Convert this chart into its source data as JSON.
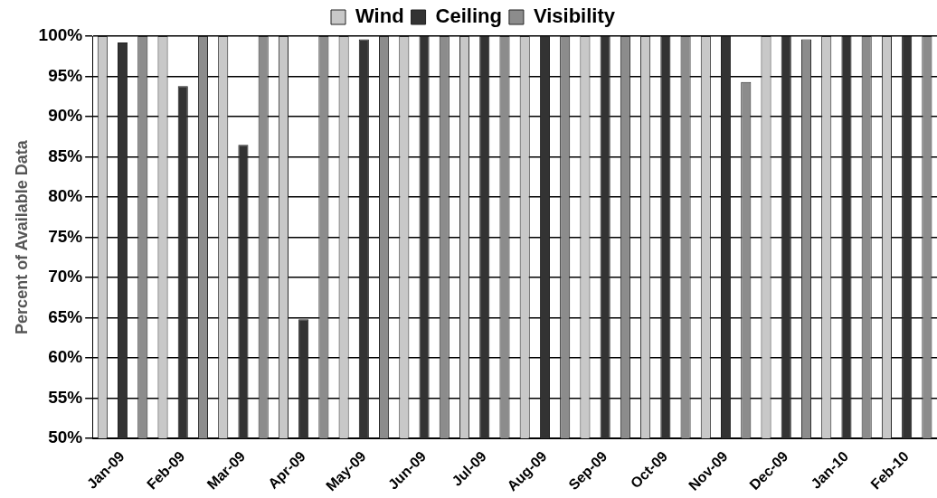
{
  "chart_data": {
    "type": "bar",
    "ylabel": "Percent of Available Data",
    "categories": [
      "Jan-09",
      "Feb-09",
      "Mar-09",
      "Apr-09",
      "May-09",
      "Jun-09",
      "Jul-09",
      "Aug-09",
      "Sep-09",
      "Oct-09",
      "Nov-09",
      "Dec-09",
      "Jan-10",
      "Feb-10"
    ],
    "series": [
      {
        "name": "Wind",
        "color": "#c8c8c8",
        "values": [
          100,
          100,
          100,
          100,
          100,
          100,
          100,
          100,
          100,
          100,
          100,
          100,
          100,
          100
        ]
      },
      {
        "name": "Ceiling",
        "color": "#333333",
        "values": [
          99.2,
          93.8,
          86.5,
          64.8,
          99.6,
          100,
          100,
          100,
          100,
          100,
          100,
          100,
          100,
          100
        ]
      },
      {
        "name": "Visibility",
        "color": "#8c8c8c",
        "values": [
          100,
          100,
          100,
          100,
          100,
          100,
          100,
          100,
          100,
          100,
          94.3,
          99.6,
          100,
          100
        ]
      }
    ],
    "ylim": [
      50,
      100
    ],
    "yticks": [
      {
        "value": 50,
        "label": "50%"
      },
      {
        "value": 55,
        "label": "55%"
      },
      {
        "value": 60,
        "label": "60%"
      },
      {
        "value": 65,
        "label": "65%"
      },
      {
        "value": 70,
        "label": "70%"
      },
      {
        "value": 75,
        "label": "75%"
      },
      {
        "value": 80,
        "label": "80%"
      },
      {
        "value": 85,
        "label": "85%"
      },
      {
        "value": 90,
        "label": "90%"
      },
      {
        "value": 95,
        "label": "95%"
      },
      {
        "value": 100,
        "label": "100%"
      }
    ],
    "grid": "y",
    "legend": "top"
  }
}
